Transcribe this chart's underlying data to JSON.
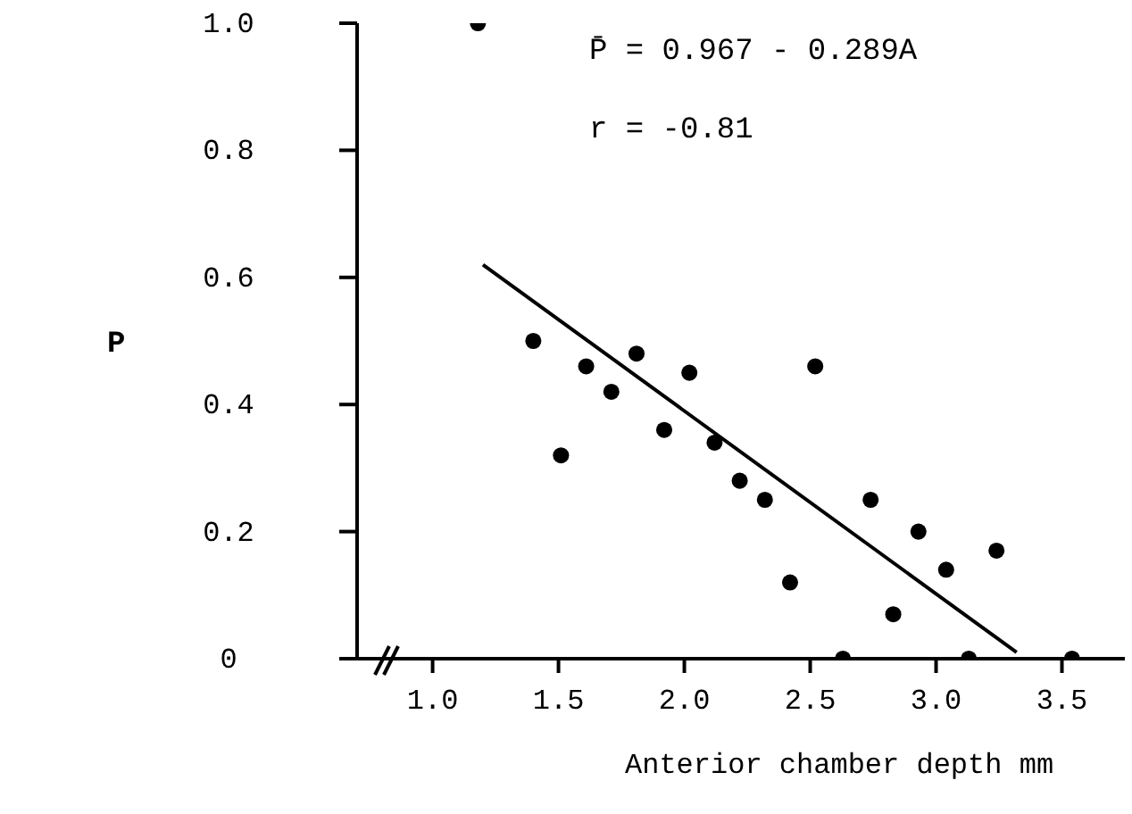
{
  "chart_data": {
    "type": "scatter",
    "xlabel": "Anterior chamber depth mm",
    "ylabel": "P",
    "annotations": [
      "P̄ = 0.967 - 0.289A",
      "r = -0.81"
    ],
    "xlim": [
      0.7,
      3.75
    ],
    "xticks": [
      {
        "value": 1,
        "label": "1.0"
      },
      {
        "value": 1.5,
        "label": "1.5"
      },
      {
        "value": 2,
        "label": "2.0"
      },
      {
        "value": 2.5,
        "label": "2.5"
      },
      {
        "value": 3,
        "label": "3.0"
      },
      {
        "value": 3.5,
        "label": "3.5"
      }
    ],
    "ylim": [
      0,
      1
    ],
    "yticks": [
      {
        "value": 0,
        "label": "0"
      },
      {
        "value": 0.2,
        "label": "0.2"
      },
      {
        "value": 0.4,
        "label": "0.4"
      },
      {
        "value": 0.6,
        "label": "0.6"
      },
      {
        "value": 0.8,
        "label": "0.8"
      },
      {
        "value": 1,
        "label": "1.0"
      }
    ],
    "grid": false,
    "marker": "circle",
    "series": [
      {
        "color": "#000000",
        "x": [
          1.18,
          1.4,
          1.51,
          1.61,
          1.71,
          1.81,
          1.92,
          2.02,
          2.12,
          2.22,
          2.32,
          2.42,
          2.52,
          2.63,
          2.74,
          2.83,
          2.93,
          3.04,
          3.13,
          3.24,
          3.54
        ],
        "values": [
          1.0,
          0.5,
          0.32,
          0.46,
          0.42,
          0.48,
          0.36,
          0.45,
          0.34,
          0.28,
          0.25,
          0.12,
          0.46,
          0,
          0.25,
          0.07,
          0.2,
          0.14,
          0,
          0.17,
          0
        ]
      },
      {
        "type": "line",
        "color": "#000000",
        "line_style": "solid",
        "marker": "none",
        "x": [
          1.2,
          3.32
        ],
        "values": [
          0.62,
          0.01
        ]
      }
    ]
  }
}
